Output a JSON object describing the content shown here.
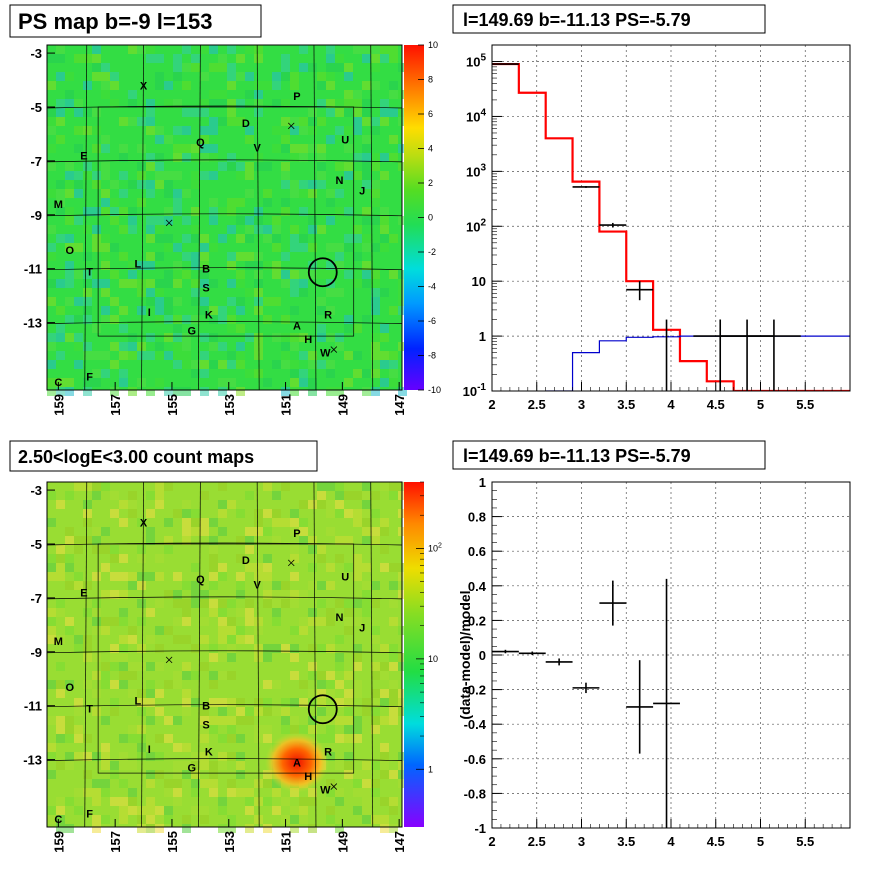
{
  "panels": {
    "ps_map": {
      "title": "PS map b=-9 l=153"
    },
    "spectrum": {
      "title": "l=149.69 b=-11.13 PS=-5.79"
    },
    "count_map": {
      "title": "2.50<logE<3.00 count maps"
    },
    "residual": {
      "title": "l=149.69 b=-11.13 PS=-5.79",
      "ylabel": "(data-model)/model"
    }
  },
  "sky_maps": {
    "x_ticks": [
      "159",
      "157",
      "155",
      "153",
      "151",
      "149",
      "147"
    ],
    "y_ticks": [
      "-3",
      "-5",
      "-7",
      "-9",
      "-11",
      "-13"
    ],
    "sources": [
      {
        "label": "X",
        "l": 156.0,
        "b": -4.2
      },
      {
        "label": "P",
        "l": 150.6,
        "b": -4.6
      },
      {
        "label": "D",
        "l": 152.4,
        "b": -5.6
      },
      {
        "label": "U",
        "l": 148.9,
        "b": -6.2
      },
      {
        "label": "Q",
        "l": 154.0,
        "b": -6.3
      },
      {
        "label": "V",
        "l": 152.0,
        "b": -6.5
      },
      {
        "label": "E",
        "l": 158.1,
        "b": -6.8
      },
      {
        "label": "N",
        "l": 149.1,
        "b": -7.7
      },
      {
        "label": "J",
        "l": 148.3,
        "b": -8.1
      },
      {
        "label": "M",
        "l": 159.0,
        "b": -8.6
      },
      {
        "label": "O",
        "l": 158.6,
        "b": -10.3
      },
      {
        "label": "L",
        "l": 156.2,
        "b": -10.8
      },
      {
        "label": "T",
        "l": 157.9,
        "b": -11.1
      },
      {
        "label": "B",
        "l": 153.8,
        "b": -11.0
      },
      {
        "label": "S",
        "l": 153.8,
        "b": -11.7
      },
      {
        "label": "I",
        "l": 155.8,
        "b": -12.6
      },
      {
        "label": "K",
        "l": 153.7,
        "b": -12.7
      },
      {
        "label": "R",
        "l": 149.5,
        "b": -12.7
      },
      {
        "label": "A",
        "l": 150.6,
        "b": -13.1
      },
      {
        "label": "G",
        "l": 154.3,
        "b": -13.3
      },
      {
        "label": "H",
        "l": 150.2,
        "b": -13.6
      },
      {
        "label": "W",
        "l": 149.6,
        "b": -14.1
      },
      {
        "label": "F",
        "l": 157.9,
        "b": -15.0
      },
      {
        "label": "C",
        "l": 159.0,
        "b": -15.2
      }
    ],
    "crosses": [
      {
        "l": 155.1,
        "b": -9.3
      },
      {
        "l": 150.8,
        "b": -5.7
      },
      {
        "l": 149.3,
        "b": -14.0
      }
    ],
    "circle": {
      "l": 149.69,
      "b": -11.13
    }
  },
  "chart_data": [
    {
      "type": "heatmap",
      "title": "PS map b=-9 l=153",
      "xlim": [
        159.4,
        146.9
      ],
      "ylim": [
        -15.5,
        -2.7
      ],
      "colorbar": {
        "min": -10,
        "max": 10,
        "ticks": [
          "10",
          "8",
          "6",
          "4",
          "2",
          "0",
          "-2",
          "-4",
          "-6",
          "-8",
          "-10"
        ],
        "scale": "linear"
      },
      "dominant_value": 0
    },
    {
      "type": "line",
      "title": "l=149.69 b=-11.13 PS=-5.79",
      "xlim": [
        2,
        6
      ],
      "ylim": [
        0.1,
        200000
      ],
      "yscale": "log",
      "grid": true,
      "x_ticks": [
        "2",
        "2.5",
        "3",
        "3.5",
        "4",
        "4.5",
        "5",
        "5.5"
      ],
      "y_ticks": [
        "10^5",
        "10^4",
        "10^3",
        "10^2",
        "10",
        "1",
        "10^-1"
      ],
      "series": [
        {
          "color": "#ff0000",
          "style": "step",
          "edges": [
            2.0,
            2.3,
            2.6,
            2.9,
            3.2,
            3.5,
            3.8,
            4.1,
            4.4,
            4.7,
            5.0,
            5.3,
            5.6,
            5.9,
            6.0
          ],
          "values": [
            90000,
            27000,
            4000,
            650,
            80,
            10,
            1.3,
            0.35,
            0.15,
            0.1,
            0.1,
            0.1,
            0.1,
            0.1
          ]
        },
        {
          "color": "#0000cc",
          "style": "step",
          "edges": [
            2.6,
            2.9,
            3.2,
            3.5,
            3.8,
            4.1,
            4.4,
            4.7,
            5.0,
            5.3,
            5.6,
            6.0
          ],
          "values": [
            0.1,
            0.5,
            0.82,
            0.95,
            0.97,
            1.0,
            1.0,
            1.0,
            1.0,
            1.0,
            1.0
          ]
        },
        {
          "color": "#000000",
          "style": "errorbar",
          "points": [
            {
              "x": 2.15,
              "xerr": 0.15,
              "y": 90000,
              "ylo": 89700,
              "yhi": 90300
            },
            {
              "x": 3.05,
              "xerr": 0.15,
              "y": 520,
              "ylo": 500,
              "yhi": 540
            },
            {
              "x": 3.35,
              "xerr": 0.15,
              "y": 105,
              "ylo": 95,
              "yhi": 115
            },
            {
              "x": 3.65,
              "xerr": 0.15,
              "y": 7,
              "ylo": 4.5,
              "yhi": 10
            },
            {
              "x": 3.95,
              "xerr": 0.0,
              "y": 0.1,
              "ylo": 0.1,
              "yhi": 2
            },
            {
              "x": 4.55,
              "xerr": 0.3,
              "y": 1,
              "ylo": 0.1,
              "yhi": 2
            },
            {
              "x": 4.85,
              "xerr": 0.3,
              "y": 1,
              "ylo": 0.1,
              "yhi": 2
            },
            {
              "x": 5.15,
              "xerr": 0.3,
              "y": 1,
              "ylo": 0.1,
              "yhi": 2
            }
          ]
        }
      ]
    },
    {
      "type": "heatmap",
      "title": "2.50<logE<3.00 count maps",
      "xlim": [
        159.4,
        146.9
      ],
      "ylim": [
        -15.5,
        -2.7
      ],
      "colorbar": {
        "scale": "log",
        "min": 0.3,
        "max": 400,
        "ticks": [
          "10^2",
          "10",
          "1"
        ]
      },
      "hotspot": {
        "l": 150.6,
        "b": -13.1
      }
    },
    {
      "type": "scatter",
      "title": "l=149.69 b=-11.13 PS=-5.79",
      "ylabel": "(data-model)/model",
      "xlim": [
        2,
        6
      ],
      "ylim": [
        -1,
        1
      ],
      "grid": true,
      "x_ticks": [
        "2",
        "2.5",
        "3",
        "3.5",
        "4",
        "4.5",
        "5",
        "5.5"
      ],
      "y_ticks": [
        "1",
        "0.8",
        "0.6",
        "0.4",
        "0.2",
        "0",
        "-0.2",
        "-0.4",
        "-0.6",
        "-0.8",
        "-1"
      ],
      "points": [
        {
          "x": 2.15,
          "xerr": 0.15,
          "y": 0.02,
          "yerr": 0.01
        },
        {
          "x": 2.45,
          "xerr": 0.15,
          "y": 0.01,
          "yerr": 0.01
        },
        {
          "x": 2.75,
          "xerr": 0.15,
          "y": -0.04,
          "yerr": 0.02
        },
        {
          "x": 3.05,
          "xerr": 0.15,
          "y": -0.19,
          "yerr": 0.03
        },
        {
          "x": 3.35,
          "xerr": 0.15,
          "y": 0.3,
          "yerr": 0.13
        },
        {
          "x": 3.65,
          "xerr": 0.15,
          "y": -0.3,
          "yerr": 0.27
        },
        {
          "x": 3.95,
          "xerr": 0.15,
          "y": -0.28,
          "yerr": 0.72
        }
      ]
    }
  ],
  "colors": {
    "map_green": "#33dd33",
    "map_yellowgreen": "#99dd33",
    "hot": "#ee2200",
    "red_line": "#ff0000",
    "blue_line": "#0000cc",
    "grid": "#555555"
  }
}
